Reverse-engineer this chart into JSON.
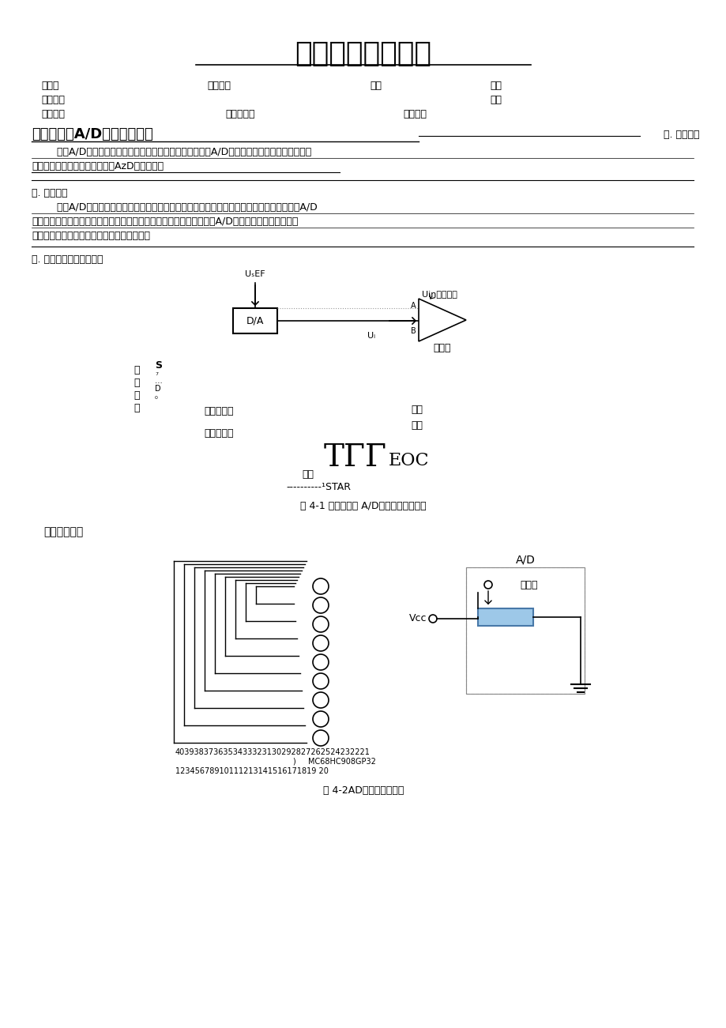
{
  "title": "苏州大学实验报告",
  "bg_color": "#ffffff",
  "text_color": "#000000",
  "fig1_caption": "图 4-1 逐次逼近式 A/D转换器工作原理图",
  "fig2_caption": "图 4-2AD转换接线原理图",
  "num_row1": "4039383736353433323130292827262524232221",
  "num_row2": ")",
  "mc_label": "MC68HC908GP32",
  "num_row3": "12345678910111213141516171819 20"
}
